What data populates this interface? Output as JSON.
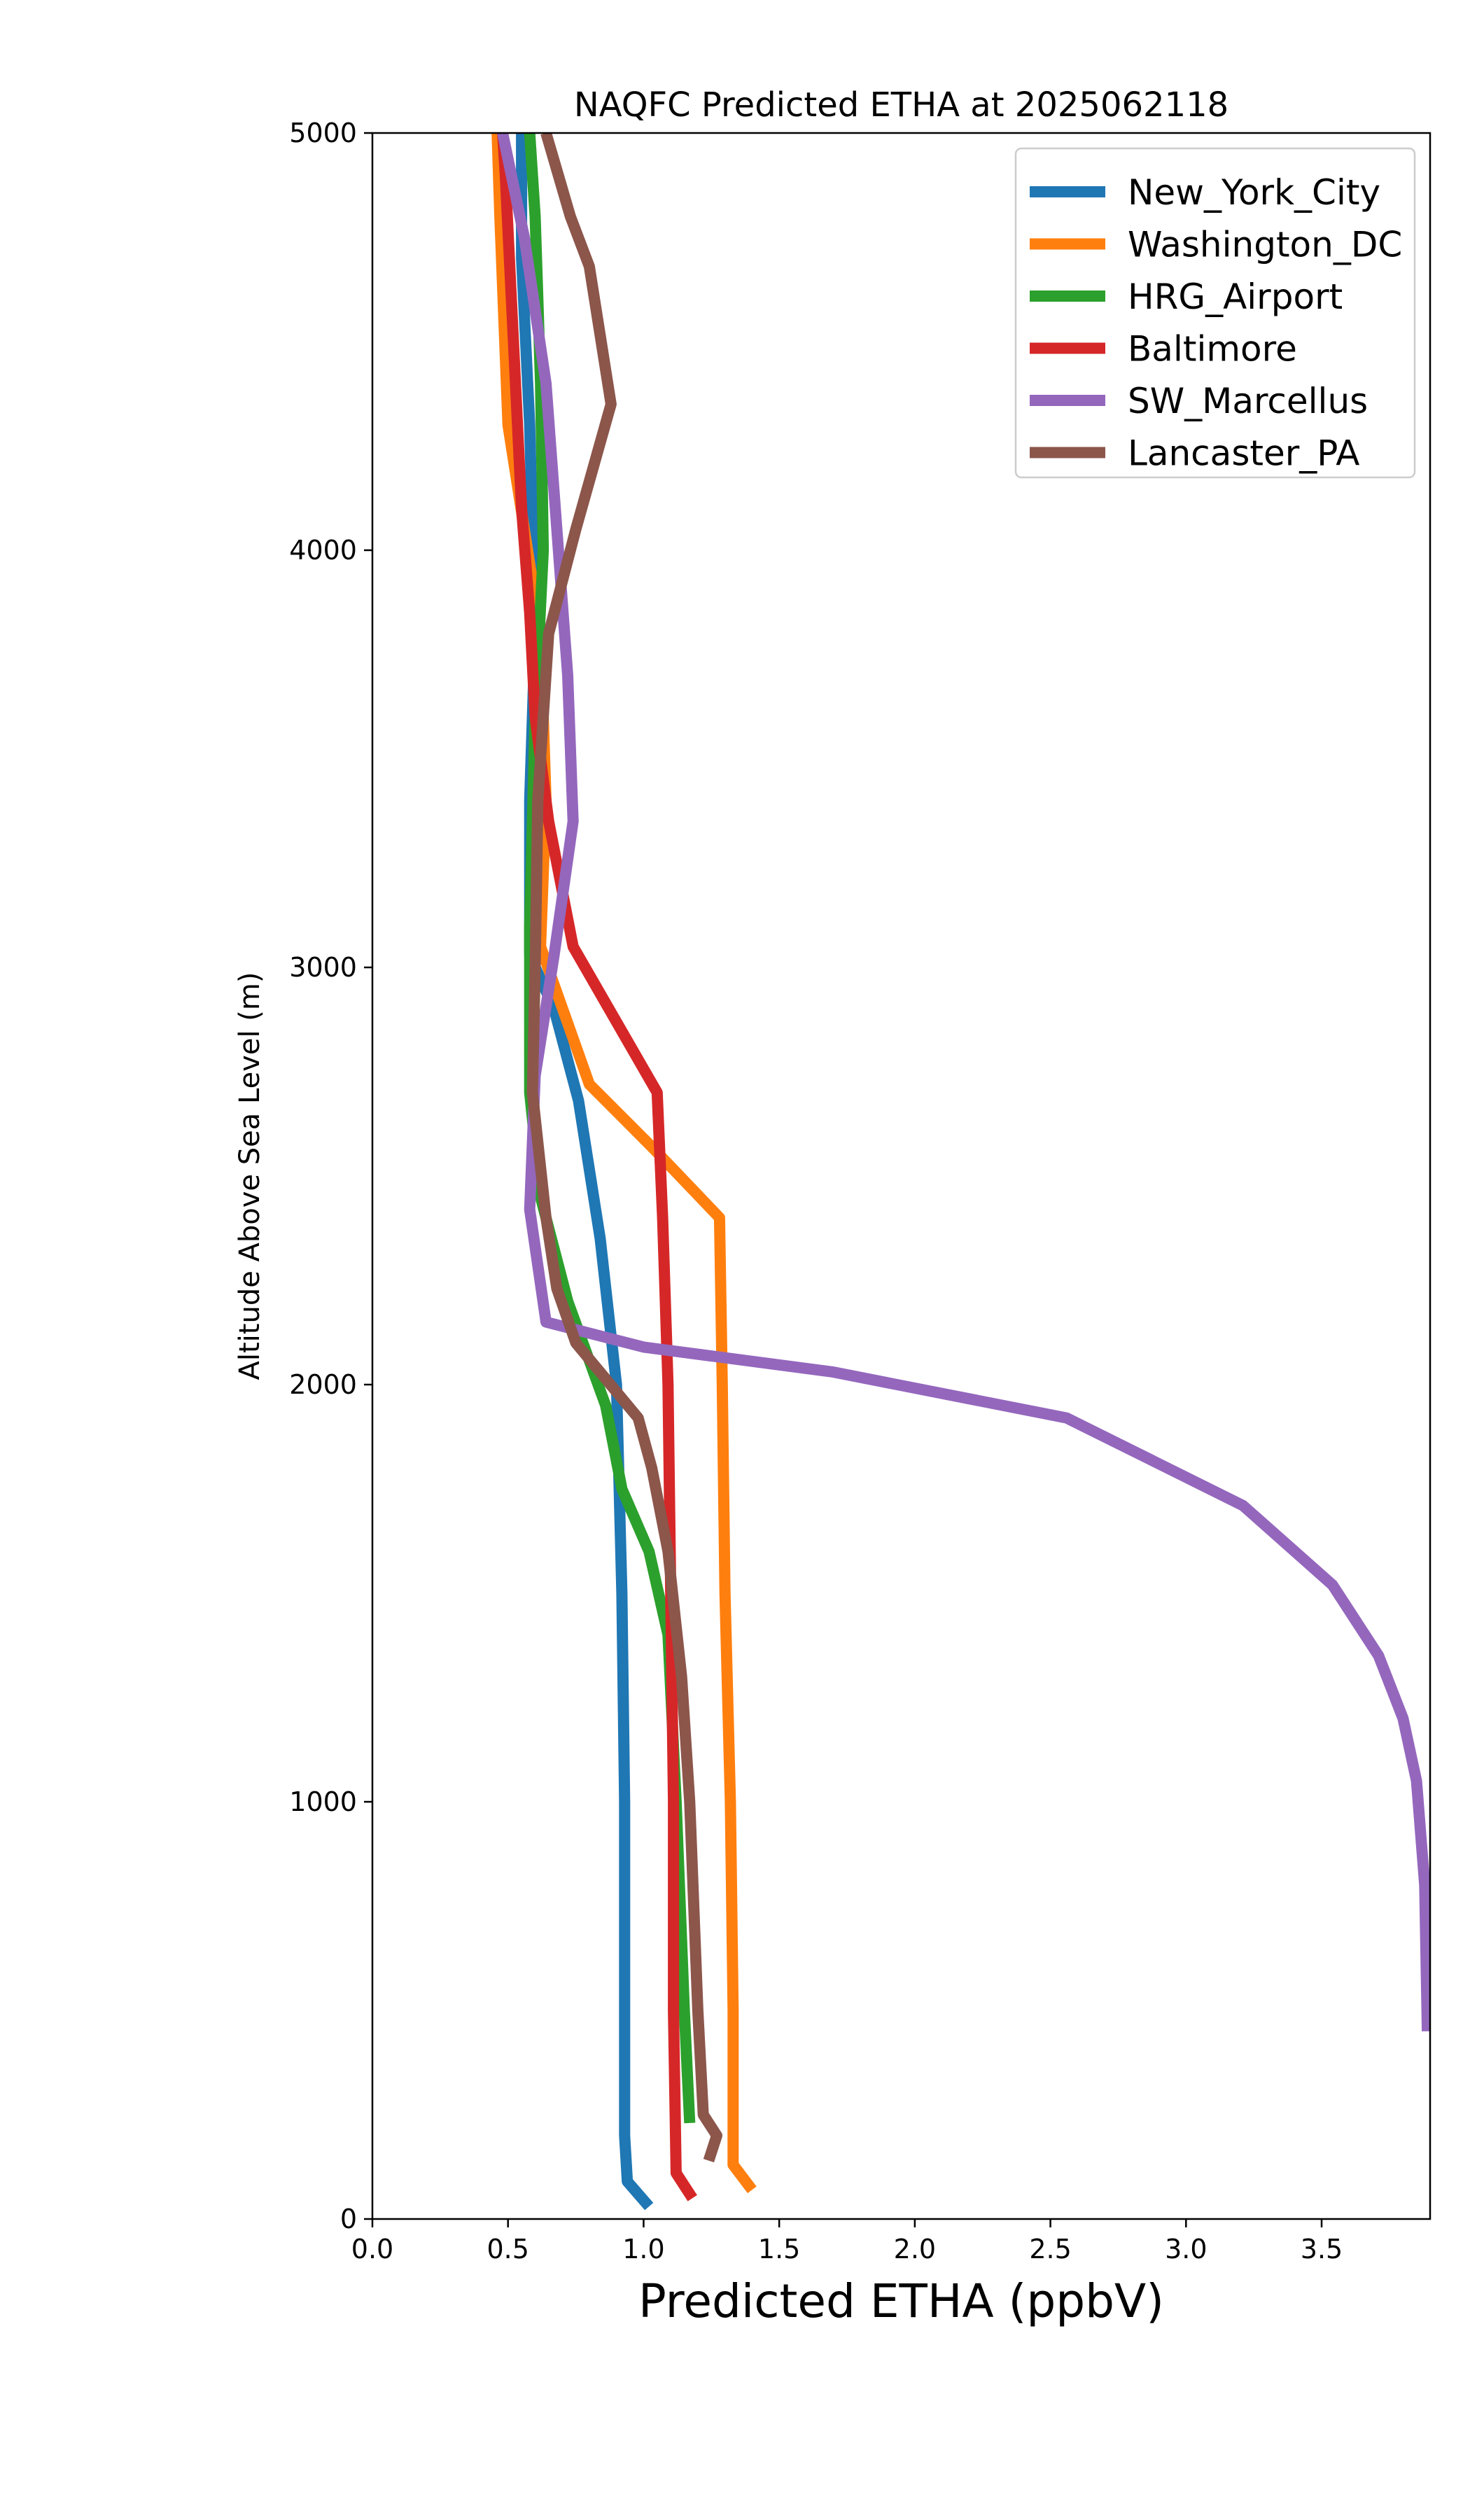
{
  "chart_data": {
    "type": "line",
    "title": "NAQFC Predicted ETHA at 2025062118",
    "xlabel": "Predicted ETHA (ppbV)",
    "ylabel": "Altitude Above Sea Level (m)",
    "xlim": [
      0.0,
      3.9
    ],
    "ylim": [
      0,
      5000
    ],
    "xticks": [
      "0.0",
      "0.5",
      "1.0",
      "1.5",
      "2.0",
      "2.5",
      "3.0",
      "3.5"
    ],
    "yticks": [
      "0",
      "1000",
      "2000",
      "3000",
      "4000",
      "5000"
    ],
    "grid": false,
    "legend_position": "top-right",
    "series": [
      {
        "name": "New_York_City",
        "color": "#1f77b4",
        "points": [
          [
            1.02,
            30
          ],
          [
            0.94,
            90
          ],
          [
            0.93,
            200
          ],
          [
            0.93,
            500
          ],
          [
            0.93,
            1000
          ],
          [
            0.92,
            1500
          ],
          [
            0.9,
            2000
          ],
          [
            0.84,
            2350
          ],
          [
            0.76,
            2680
          ],
          [
            0.67,
            2900
          ],
          [
            0.58,
            3030
          ],
          [
            0.58,
            3400
          ],
          [
            0.6,
            3800
          ],
          [
            0.58,
            4300
          ],
          [
            0.55,
            4700
          ],
          [
            0.55,
            5000
          ]
        ]
      },
      {
        "name": "Washington_DC",
        "color": "#ff7f0e",
        "points": [
          [
            1.4,
            70
          ],
          [
            1.33,
            130
          ],
          [
            1.33,
            500
          ],
          [
            1.32,
            1000
          ],
          [
            1.3,
            1500
          ],
          [
            1.29,
            2000
          ],
          [
            1.28,
            2400
          ],
          [
            1.03,
            2570
          ],
          [
            0.8,
            2720
          ],
          [
            0.62,
            3050
          ],
          [
            0.64,
            3400
          ],
          [
            0.62,
            3800
          ],
          [
            0.56,
            4050
          ],
          [
            0.5,
            4300
          ],
          [
            0.47,
            4800
          ],
          [
            0.46,
            5000
          ]
        ]
      },
      {
        "name": "HRG_Airport",
        "color": "#2ca02c",
        "points": [
          [
            1.17,
            230
          ],
          [
            1.15,
            500
          ],
          [
            1.12,
            1000
          ],
          [
            1.09,
            1400
          ],
          [
            1.02,
            1600
          ],
          [
            0.92,
            1750
          ],
          [
            0.86,
            1950
          ],
          [
            0.72,
            2200
          ],
          [
            0.62,
            2450
          ],
          [
            0.58,
            2700
          ],
          [
            0.58,
            3100
          ],
          [
            0.6,
            3600
          ],
          [
            0.63,
            4000
          ],
          [
            0.62,
            4400
          ],
          [
            0.6,
            4800
          ],
          [
            0.58,
            5000
          ]
        ]
      },
      {
        "name": "Baltimore",
        "color": "#d62728",
        "points": [
          [
            1.18,
            50
          ],
          [
            1.12,
            110
          ],
          [
            1.11,
            500
          ],
          [
            1.11,
            1000
          ],
          [
            1.1,
            1500
          ],
          [
            1.09,
            2000
          ],
          [
            1.07,
            2400
          ],
          [
            1.05,
            2700
          ],
          [
            0.74,
            3050
          ],
          [
            0.65,
            3350
          ],
          [
            0.6,
            3600
          ],
          [
            0.58,
            3850
          ],
          [
            0.55,
            4100
          ],
          [
            0.52,
            4500
          ],
          [
            0.49,
            4900
          ],
          [
            0.48,
            5000
          ]
        ]
      },
      {
        "name": "SW_Marcellus",
        "color": "#9467bd",
        "points": [
          [
            3.89,
            450
          ],
          [
            3.88,
            800
          ],
          [
            3.85,
            1050
          ],
          [
            3.8,
            1200
          ],
          [
            3.71,
            1350
          ],
          [
            3.54,
            1520
          ],
          [
            3.21,
            1710
          ],
          [
            2.56,
            1920
          ],
          [
            1.7,
            2030
          ],
          [
            1.0,
            2090
          ],
          [
            0.64,
            2150
          ],
          [
            0.58,
            2420
          ],
          [
            0.6,
            2740
          ],
          [
            0.67,
            3030
          ],
          [
            0.74,
            3350
          ],
          [
            0.72,
            3700
          ],
          [
            0.68,
            4050
          ],
          [
            0.64,
            4400
          ],
          [
            0.56,
            4750
          ],
          [
            0.48,
            5000
          ]
        ]
      },
      {
        "name": "Lancaster_PA",
        "color": "#8c564b",
        "points": [
          [
            1.24,
            140
          ],
          [
            1.27,
            200
          ],
          [
            1.22,
            250
          ],
          [
            1.2,
            500
          ],
          [
            1.17,
            1000
          ],
          [
            1.14,
            1300
          ],
          [
            1.09,
            1600
          ],
          [
            1.03,
            1800
          ],
          [
            0.98,
            1920
          ],
          [
            0.75,
            2100
          ],
          [
            0.68,
            2230
          ],
          [
            0.64,
            2400
          ],
          [
            0.59,
            2700
          ],
          [
            0.6,
            3000
          ],
          [
            0.61,
            3400
          ],
          [
            0.65,
            3800
          ],
          [
            0.75,
            4050
          ],
          [
            0.88,
            4350
          ],
          [
            0.8,
            4680
          ],
          [
            0.73,
            4800
          ],
          [
            0.64,
            5000
          ]
        ]
      }
    ]
  }
}
